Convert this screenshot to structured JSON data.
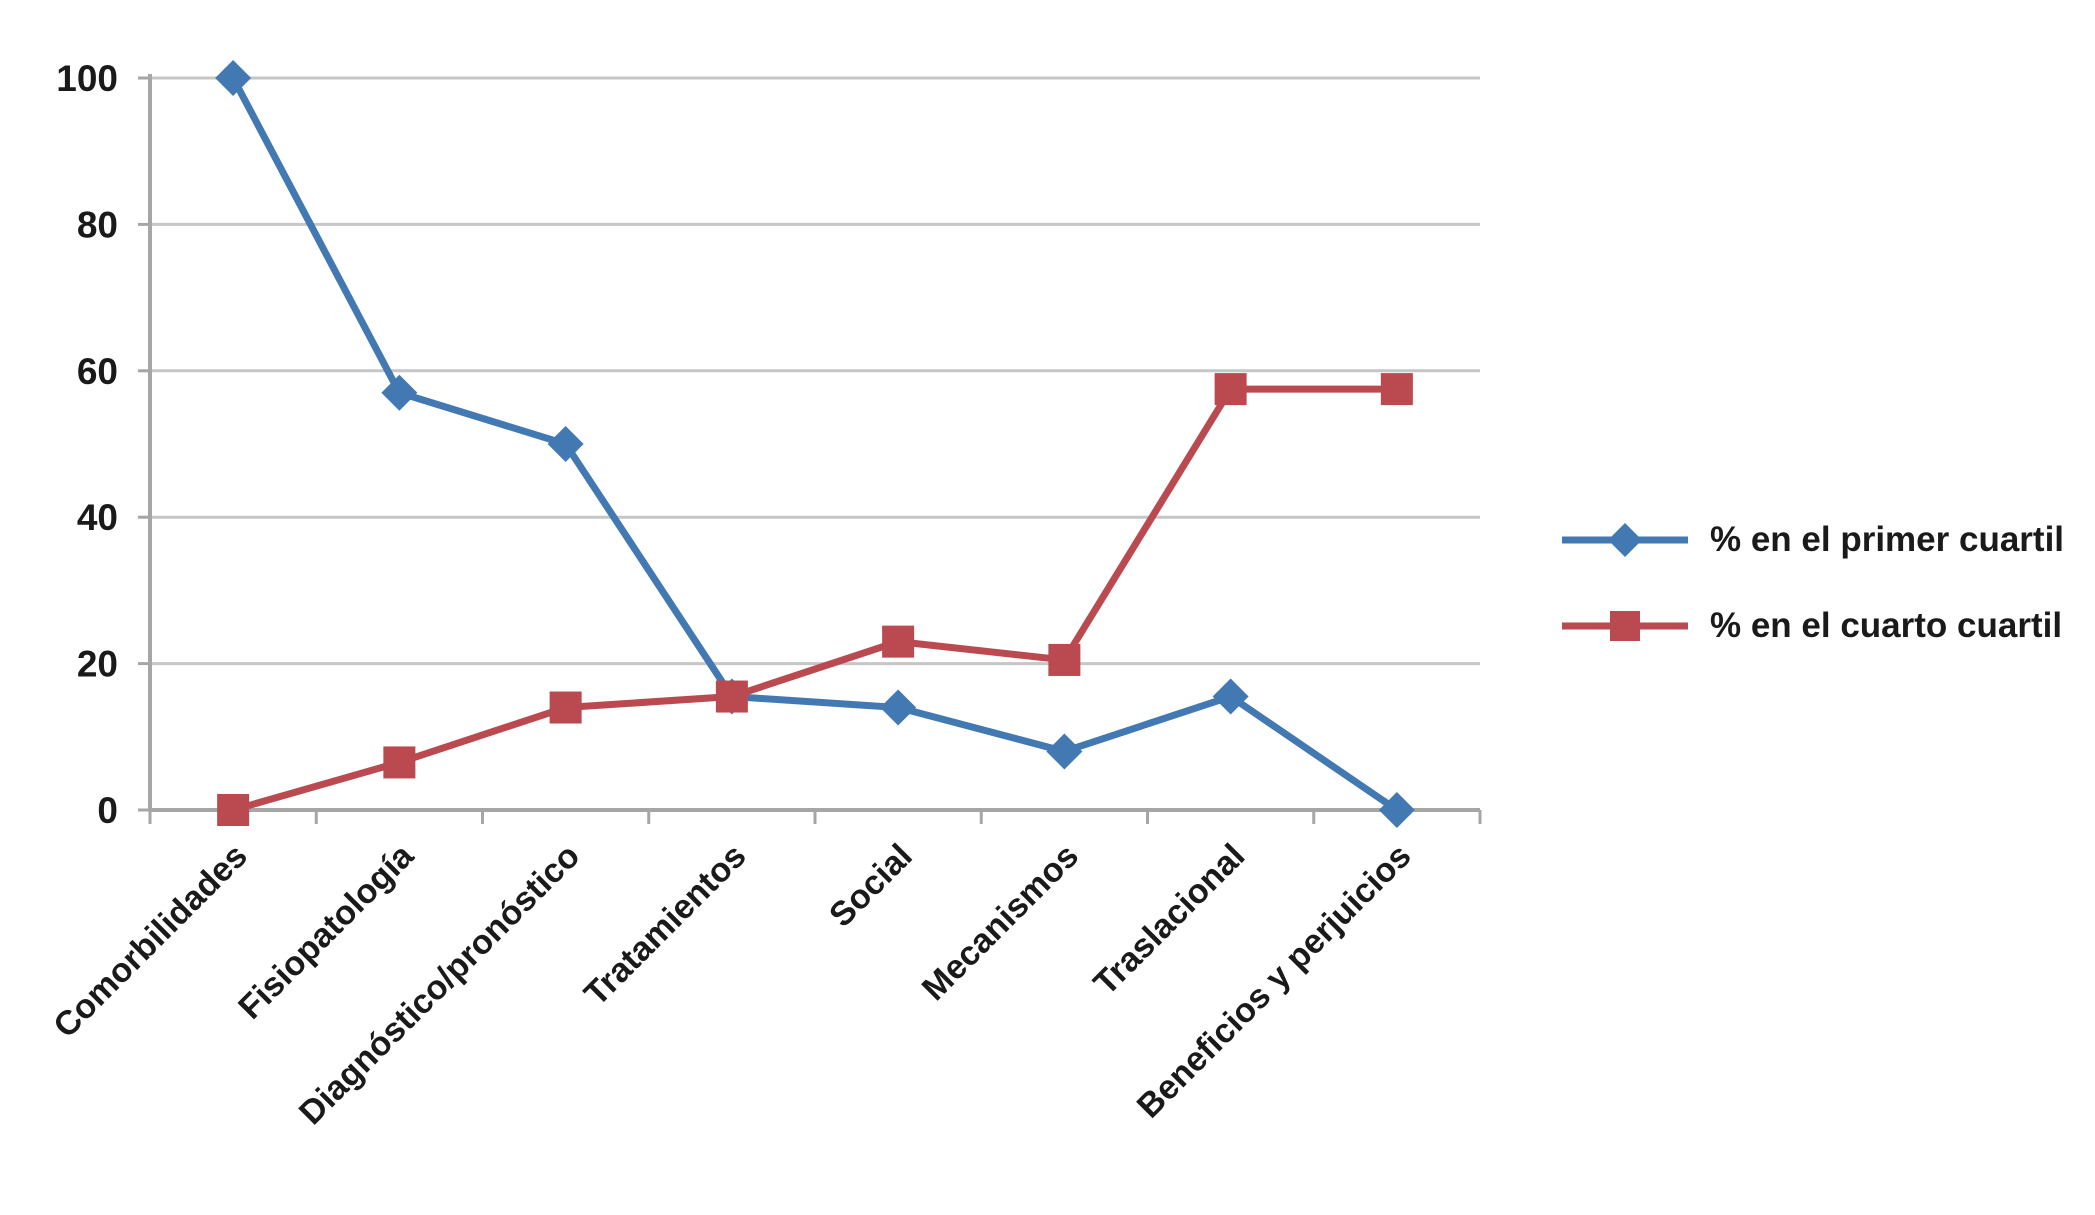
{
  "chart_data": {
    "type": "line",
    "title": "",
    "xlabel": "",
    "ylabel": "",
    "categories": [
      "Comorbilidades",
      "Fisiopatología",
      "Diagnóstico/pronóstico",
      "Tratamientos",
      "Social",
      "Mecanismos",
      "Traslacional",
      "Beneficios y perjuicios"
    ],
    "series": [
      {
        "name": "% en el primer cuartil",
        "marker": "diamond",
        "color": "#4379B2",
        "values": [
          100,
          57,
          50,
          15.5,
          14,
          8,
          15.5,
          0
        ]
      },
      {
        "name": "% en el cuarto cuartil",
        "marker": "square",
        "color": "#BA4A50",
        "values": [
          0,
          6.5,
          14,
          15.5,
          23,
          20.5,
          57.5,
          57.5
        ]
      }
    ],
    "ylim": [
      0,
      100
    ],
    "yticks": [
      0,
      20,
      40,
      60,
      80,
      100
    ],
    "grid": true,
    "grid_color": "#C6C6C6",
    "axis_color": "#A6A6A6",
    "legend_position": "right"
  },
  "legend": {
    "items": [
      {
        "label": "% en el primer cuartil"
      },
      {
        "label": "% en el cuarto cuartil"
      }
    ]
  }
}
